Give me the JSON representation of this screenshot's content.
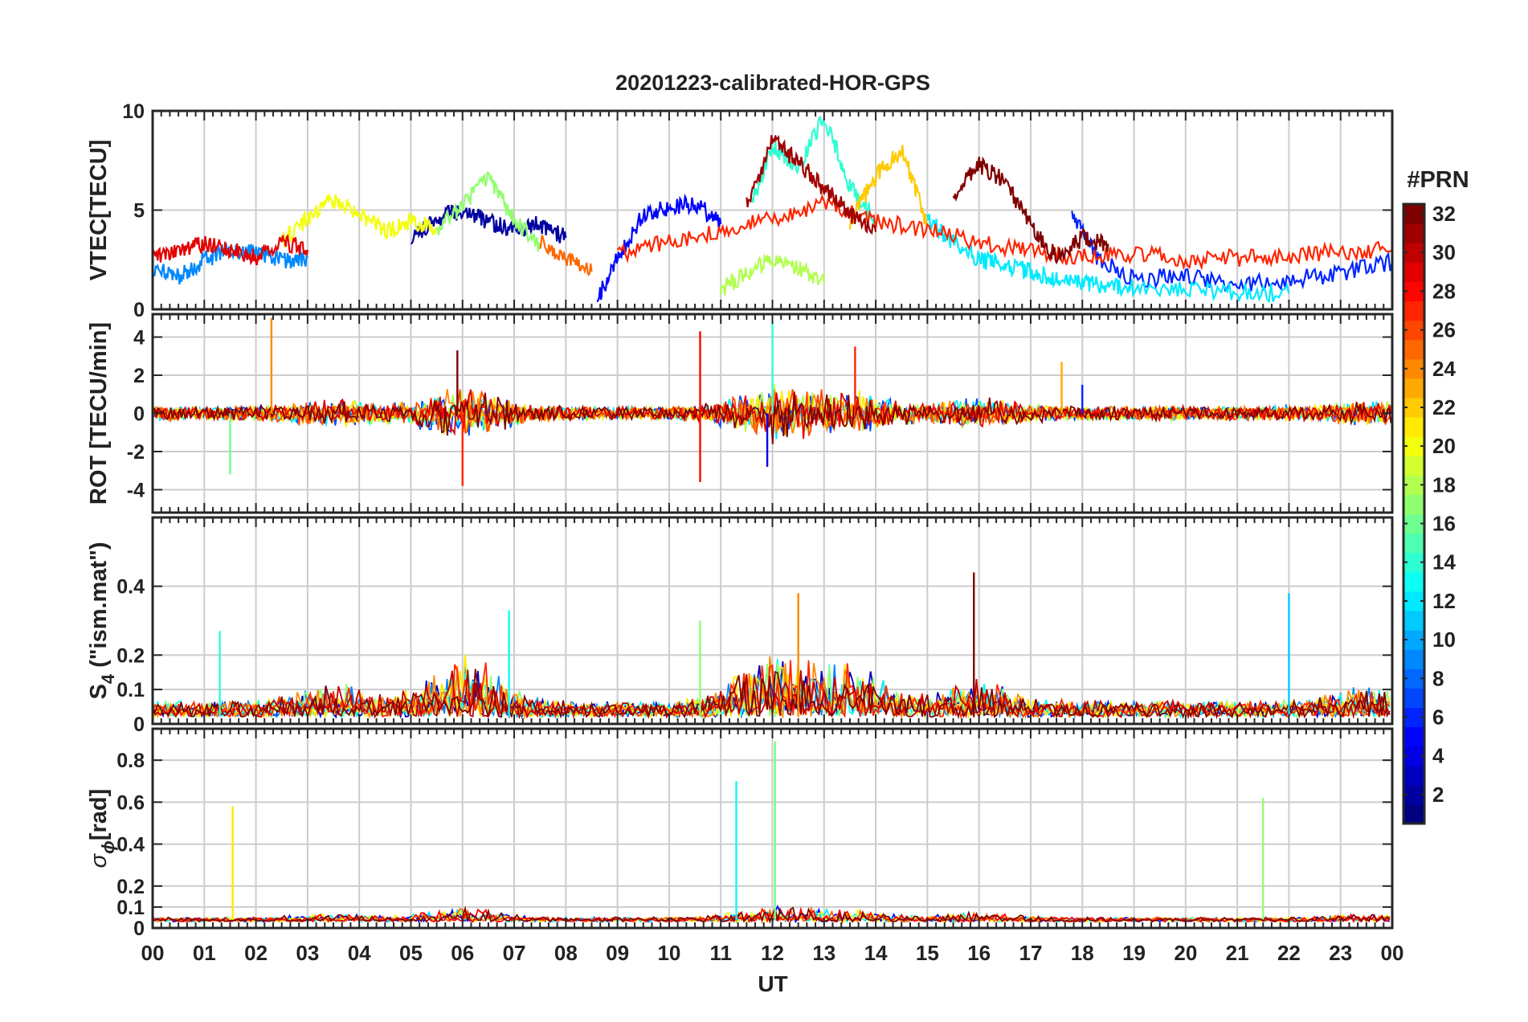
{
  "title": "20201223-calibrated-HOR-GPS",
  "xlabel": "UT",
  "x_ticks": [
    "00",
    "01",
    "02",
    "03",
    "04",
    "05",
    "06",
    "07",
    "08",
    "09",
    "10",
    "11",
    "12",
    "13",
    "14",
    "15",
    "16",
    "17",
    "18",
    "19",
    "20",
    "21",
    "22",
    "23",
    "00"
  ],
  "colorbar": {
    "label": "#PRN",
    "ticks": [
      "2",
      "4",
      "6",
      "8",
      "10",
      "12",
      "14",
      "16",
      "18",
      "20",
      "22",
      "24",
      "26",
      "28",
      "30",
      "32"
    ],
    "colormap": "jet",
    "range": [
      1,
      32
    ]
  },
  "panels": [
    {
      "id": "vtec",
      "ylabel": "VTEC[TECU]",
      "ylim": [
        0,
        10
      ],
      "yticks": [
        "0",
        "5",
        "10"
      ]
    },
    {
      "id": "rot",
      "ylabel": "ROT [TECU/min]",
      "ylim": [
        -5.2,
        5.2
      ],
      "yticks": [
        "4",
        "2",
        "0",
        "-2",
        "-4"
      ]
    },
    {
      "id": "s4",
      "ylabel_main": "S",
      "ylabel_sub": "4",
      "ylabel_rest": " (\"ism.mat\")",
      "ylim": [
        0,
        0.6
      ],
      "yticks": [
        "0",
        "0.1",
        "0.2",
        "0.4"
      ]
    },
    {
      "id": "sigma",
      "ylabel_main": "σ",
      "ylabel_sub": "ϕ",
      "ylabel_rest": "[rad]",
      "ylim": [
        0,
        0.95
      ],
      "yticks": [
        "0",
        "0.1",
        "0.2",
        "0.4",
        "0.6",
        "0.8"
      ]
    }
  ],
  "chart_data": [
    {
      "type": "line",
      "title": "20201223-calibrated-HOR-GPS",
      "ylabel": "VTEC[TECU]",
      "xlim": [
        0,
        24
      ],
      "ylim": [
        0,
        10
      ],
      "grid": true,
      "series": [
        {
          "prn": 2,
          "x": [
            5.0,
            5.5,
            6.0,
            6.5,
            7.0,
            7.5,
            8.0
          ],
          "y": [
            3.5,
            4.6,
            5.0,
            4.4,
            4.0,
            4.3,
            3.6
          ]
        },
        {
          "prn": 5,
          "x": [
            8.6,
            9.0,
            9.5,
            10.0,
            10.5,
            11.0
          ],
          "y": [
            0.4,
            2.6,
            4.8,
            5.1,
            5.4,
            4.3
          ]
        },
        {
          "prn": 6,
          "x": [
            17.8,
            18.3,
            19.0,
            20.0,
            21.0,
            22.0,
            23.0,
            24.0
          ],
          "y": [
            4.8,
            2.6,
            1.5,
            1.7,
            1.3,
            1.5,
            1.8,
            2.4
          ]
        },
        {
          "prn": 9,
          "x": [
            0.0,
            0.5,
            1.0,
            1.5,
            2.0,
            2.5,
            3.0
          ],
          "y": [
            2.1,
            1.6,
            2.5,
            3.0,
            2.8,
            2.4,
            2.6
          ]
        },
        {
          "prn": 12,
          "x": [
            15.0,
            15.5,
            16.0,
            16.5,
            17.0,
            17.5,
            18.0,
            18.5,
            19.0,
            20.0,
            21.0,
            22.0
          ],
          "y": [
            4.5,
            3.4,
            2.5,
            2.2,
            1.9,
            1.6,
            1.3,
            1.2,
            1.1,
            1.0,
            0.9,
            0.8
          ]
        },
        {
          "prn": 14,
          "x": [
            11.6,
            12.0,
            12.5,
            13.0,
            13.5,
            14.0
          ],
          "y": [
            5.4,
            8.2,
            7.1,
            9.7,
            6.2,
            4.5
          ]
        },
        {
          "prn": 17,
          "x": [
            5.5,
            6.0,
            6.5,
            7.0,
            7.5
          ],
          "y": [
            4.0,
            5.3,
            6.6,
            4.5,
            3.2
          ]
        },
        {
          "prn": 18,
          "x": [
            11.0,
            11.5,
            12.0,
            12.5,
            13.0
          ],
          "y": [
            1.0,
            1.8,
            2.6,
            2.1,
            1.3
          ]
        },
        {
          "prn": 20,
          "x": [
            2.5,
            3.0,
            3.5,
            4.0,
            4.5,
            5.0,
            5.5
          ],
          "y": [
            3.4,
            4.6,
            5.5,
            4.8,
            3.9,
            4.4,
            4.1
          ]
        },
        {
          "prn": 22,
          "x": [
            13.5,
            14.0,
            14.5,
            15.0
          ],
          "y": [
            4.4,
            6.7,
            8.1,
            4.2
          ]
        },
        {
          "prn": 25,
          "x": [
            7.5,
            8.0,
            8.5
          ],
          "y": [
            3.4,
            2.6,
            1.9
          ]
        },
        {
          "prn": 27,
          "x": [
            9.0,
            10.0,
            11.0,
            12.0,
            13.0,
            14.0,
            15.0,
            16.0,
            17.0,
            18.0,
            19.0,
            20.0,
            21.0,
            22.0,
            23.0,
            24.0
          ],
          "y": [
            2.8,
            3.4,
            3.9,
            4.6,
            5.3,
            4.5,
            4.0,
            3.4,
            2.9,
            2.6,
            2.8,
            2.5,
            2.6,
            2.7,
            2.9,
            3.0
          ]
        },
        {
          "prn": 29,
          "x": [
            0.0,
            0.5,
            1.0,
            1.5,
            2.0,
            2.5,
            3.0
          ],
          "y": [
            2.6,
            2.9,
            3.3,
            3.0,
            2.6,
            3.4,
            3.0
          ]
        },
        {
          "prn": 31,
          "x": [
            11.5,
            12.0,
            12.5,
            13.0,
            13.5,
            14.0
          ],
          "y": [
            5.2,
            8.5,
            7.4,
            6.1,
            4.8,
            3.9
          ]
        },
        {
          "prn": 32,
          "x": [
            15.5,
            16.0,
            16.5,
            17.0,
            17.5,
            18.0,
            18.5
          ],
          "y": [
            5.6,
            7.3,
            6.5,
            4.2,
            2.6,
            3.6,
            3.3
          ]
        }
      ]
    },
    {
      "type": "line",
      "ylabel": "ROT [TECU/min]",
      "xlim": [
        0,
        24
      ],
      "ylim": [
        -5.2,
        5.2
      ],
      "grid": true,
      "baseline": 0,
      "spikes": [
        {
          "prn": 24,
          "x": 2.3,
          "y": 5.0
        },
        {
          "prn": 16,
          "x": 1.5,
          "y": -3.2
        },
        {
          "prn": 27,
          "x": 6.0,
          "y": -3.8
        },
        {
          "prn": 32,
          "x": 5.9,
          "y": 3.3
        },
        {
          "prn": 28,
          "x": 10.6,
          "y": -3.6
        },
        {
          "prn": 28,
          "x": 10.6,
          "y": 4.3
        },
        {
          "prn": 14,
          "x": 12.0,
          "y": 4.8
        },
        {
          "prn": 4,
          "x": 11.9,
          "y": -2.8
        },
        {
          "prn": 27,
          "x": 13.6,
          "y": 3.5
        },
        {
          "prn": 23,
          "x": 17.6,
          "y": 2.7
        },
        {
          "prn": 6,
          "x": 18.0,
          "y": 1.5
        }
      ]
    },
    {
      "type": "line",
      "ylabel": "S4 (\"ism.mat\")",
      "xlim": [
        0,
        24
      ],
      "ylim": [
        0,
        0.6
      ],
      "grid": true,
      "spikes": [
        {
          "prn": 14,
          "x": 1.3,
          "y": 0.27
        },
        {
          "prn": 13,
          "x": 6.9,
          "y": 0.33
        },
        {
          "prn": 17,
          "x": 10.6,
          "y": 0.3
        },
        {
          "prn": 24,
          "x": 12.5,
          "y": 0.38
        },
        {
          "prn": 32,
          "x": 15.9,
          "y": 0.44
        },
        {
          "prn": 11,
          "x": 22.0,
          "y": 0.38
        }
      ]
    },
    {
      "type": "line",
      "ylabel": "σϕ[rad]",
      "xlim": [
        0,
        24
      ],
      "ylim": [
        0,
        0.95
      ],
      "grid": true,
      "spikes": [
        {
          "prn": 21,
          "x": 1.55,
          "y": 0.58
        },
        {
          "prn": 13,
          "x": 11.3,
          "y": 0.7
        },
        {
          "prn": 16,
          "x": 12.05,
          "y": 0.89
        },
        {
          "prn": 17,
          "x": 21.5,
          "y": 0.62
        }
      ]
    }
  ]
}
